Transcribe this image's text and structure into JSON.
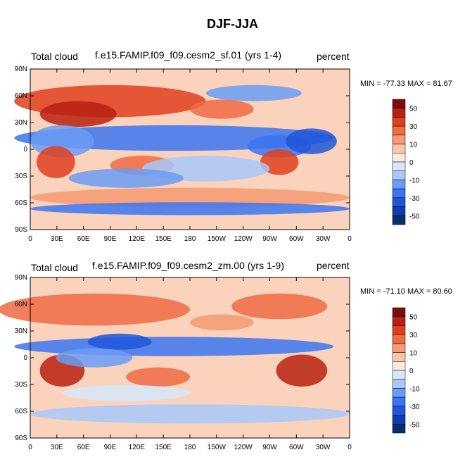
{
  "figure": {
    "title": "DJF-JJA"
  },
  "colorbar": {
    "colors": [
      "#08306b",
      "#0b3cb2",
      "#1f56d9",
      "#3b74f0",
      "#6a9cf5",
      "#a8c8f9",
      "#d6e6fb",
      "#fde9dc",
      "#fbc6a6",
      "#f59a72",
      "#ee6a45",
      "#df3f1e",
      "#b8200f",
      "#7a0d0a"
    ],
    "labels": [
      "50",
      "30",
      "10",
      "0",
      "-10",
      "-30",
      "-50"
    ]
  },
  "axes": {
    "lat_labels": [
      "90N",
      "60N",
      "30N",
      "0",
      "30S",
      "60S",
      "90S"
    ],
    "lon_labels": [
      "0",
      "30E",
      "60E",
      "90E",
      "120E",
      "150E",
      "180",
      "150W",
      "120W",
      "90W",
      "60W",
      "30W",
      "0"
    ]
  },
  "panels": [
    {
      "variable": "Total cloud",
      "case": "f.e15.FAMIP.f09_f09.cesm2_sf.01 (yrs 1-4)",
      "units": "percent",
      "stats": "MIN = -77.33 MAX =  81.67"
    },
    {
      "variable": "Total cloud",
      "case": "f.e15.FAMIP.f09_f09.cesm2_zm.00 (yrs 1-9)",
      "units": "percent",
      "stats": "MIN = -71.10 MAX =  80.60"
    }
  ]
}
